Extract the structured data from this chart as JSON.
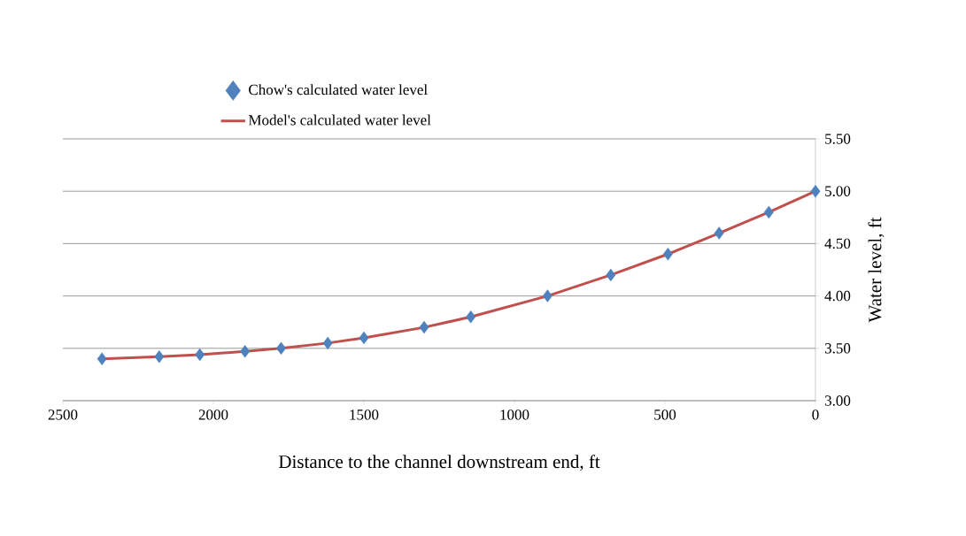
{
  "chart_data": {
    "type": "line",
    "xlabel": "Distance to the channel downstream end, ft",
    "ylabel": "Water level, ft",
    "xlim": [
      2500,
      0
    ],
    "xticks": [
      2500,
      2000,
      1500,
      1000,
      500,
      0
    ],
    "ylim": [
      3.0,
      5.5
    ],
    "yticks": [
      {
        "value": 3.0,
        "label": "3.00"
      },
      {
        "value": 3.5,
        "label": "3.50"
      },
      {
        "value": 4.0,
        "label": "4.00"
      },
      {
        "value": 4.5,
        "label": "4.50"
      },
      {
        "value": 5.0,
        "label": "5.00"
      },
      {
        "value": 5.5,
        "label": "5.50"
      }
    ],
    "grid": "y",
    "legend": "top",
    "series": [
      {
        "name": "Chow's calculated water level",
        "type": "scatter",
        "marker": "diamond",
        "color": "#4f81bd",
        "x": [
          2370,
          2180,
          2045,
          1895,
          1775,
          1620,
          1500,
          1300,
          1145,
          890,
          680,
          490,
          320,
          155,
          0
        ],
        "values": [
          3.4,
          3.42,
          3.44,
          3.47,
          3.5,
          3.55,
          3.6,
          3.7,
          3.8,
          4.0,
          4.2,
          4.4,
          4.6,
          4.8,
          5.0
        ]
      },
      {
        "name": "Model's calculated water level",
        "marker": "none",
        "line_style": "solid",
        "color": "#c0504d",
        "x": [
          2370,
          2180,
          2045,
          1895,
          1775,
          1620,
          1500,
          1300,
          1145,
          890,
          680,
          490,
          320,
          155,
          0
        ],
        "values": [
          3.4,
          3.42,
          3.44,
          3.47,
          3.5,
          3.55,
          3.6,
          3.7,
          3.8,
          4.0,
          4.2,
          4.4,
          4.6,
          4.8,
          5.0
        ]
      }
    ]
  }
}
